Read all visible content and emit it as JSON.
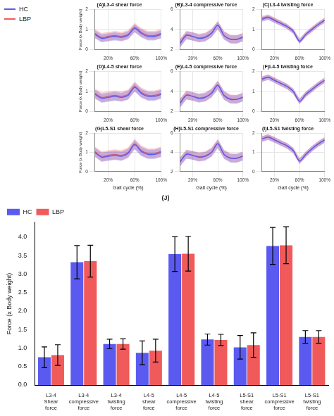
{
  "chart_data": [
    {
      "type": "line",
      "title": "(A)L3-4 shear force",
      "ylabel": "Force (x Body weight)",
      "x": [
        0,
        10,
        20,
        30,
        40,
        50,
        60,
        70,
        80,
        90,
        100
      ],
      "xlim": [
        0,
        100
      ],
      "xticks": [
        {
          "value": 20,
          "label": "20%"
        },
        {
          "value": 60,
          "label": "60%"
        },
        {
          "value": 100,
          "label": "100%"
        }
      ],
      "ylim": [
        0,
        2
      ],
      "yticks": [
        0,
        1,
        2
      ],
      "grid": true,
      "legend": "left",
      "series": [
        {
          "name": "HC",
          "color": "#5a5af0",
          "values": [
            0.75,
            0.55,
            0.6,
            0.65,
            0.6,
            0.7,
            1.05,
            0.8,
            0.65,
            0.65,
            0.75
          ],
          "error": 0.2
        },
        {
          "name": "LBP",
          "color": "#f05a5a",
          "values": [
            0.8,
            0.6,
            0.65,
            0.7,
            0.65,
            0.75,
            1.1,
            0.85,
            0.7,
            0.7,
            0.8
          ],
          "error": 0.22
        }
      ]
    },
    {
      "type": "line",
      "title": "(B)L3-4 compressive force",
      "x": [
        0,
        10,
        20,
        30,
        40,
        50,
        60,
        70,
        80,
        90,
        100
      ],
      "xlim": [
        0,
        100
      ],
      "xticks": [
        {
          "value": 20,
          "label": "20%"
        },
        {
          "value": 60,
          "label": "60%"
        },
        {
          "value": 100,
          "label": "100%"
        }
      ],
      "ylim": [
        2,
        6
      ],
      "yticks": [
        2,
        4,
        6
      ],
      "grid": true,
      "series": [
        {
          "name": "HC",
          "color": "#5a5af0",
          "values": [
            2.6,
            3.4,
            3.3,
            3.1,
            3.2,
            3.6,
            4.4,
            3.4,
            3.0,
            3.0,
            3.2
          ],
          "error": 0.4
        },
        {
          "name": "LBP",
          "color": "#f05a5a",
          "values": [
            2.65,
            3.45,
            3.3,
            3.15,
            3.25,
            3.65,
            4.45,
            3.4,
            3.05,
            3.0,
            3.25
          ],
          "error": 0.42
        }
      ]
    },
    {
      "type": "line",
      "title": "(C)L3-4 twisting force",
      "x": [
        0,
        10,
        20,
        30,
        40,
        50,
        60,
        70,
        80,
        90,
        100
      ],
      "xlim": [
        0,
        100
      ],
      "xticks": [
        {
          "value": 20,
          "label": "20%"
        },
        {
          "value": 60,
          "label": "60%"
        },
        {
          "value": 100,
          "label": "100%"
        }
      ],
      "ylim": [
        0,
        2
      ],
      "yticks": [
        0,
        1,
        2
      ],
      "grid": true,
      "series": [
        {
          "name": "HC",
          "color": "#5a5af0",
          "values": [
            1.5,
            1.6,
            1.45,
            1.3,
            1.15,
            0.9,
            0.4,
            0.75,
            1.0,
            1.25,
            1.45
          ],
          "error": 0.12
        },
        {
          "name": "LBP",
          "color": "#f05a5a",
          "values": [
            1.55,
            1.62,
            1.47,
            1.32,
            1.15,
            0.92,
            0.42,
            0.75,
            1.02,
            1.25,
            1.47
          ],
          "error": 0.13
        }
      ]
    },
    {
      "type": "line",
      "title": "(D)L4-5 shear force",
      "ylabel": "Force (x Body weight)",
      "x": [
        0,
        10,
        20,
        30,
        40,
        50,
        60,
        70,
        80,
        90,
        100
      ],
      "xlim": [
        0,
        100
      ],
      "xticks": [
        {
          "value": 20,
          "label": "20%"
        },
        {
          "value": 60,
          "label": "60%"
        },
        {
          "value": 100,
          "label": "100%"
        }
      ],
      "ylim": [
        0,
        2
      ],
      "yticks": [
        0,
        1,
        2
      ],
      "grid": true,
      "series": [
        {
          "name": "HC",
          "color": "#5a5af0",
          "values": [
            0.85,
            0.65,
            0.7,
            0.75,
            0.7,
            0.8,
            1.2,
            0.9,
            0.75,
            0.75,
            0.85
          ],
          "error": 0.22
        },
        {
          "name": "LBP",
          "color": "#f05a5a",
          "values": [
            0.9,
            0.7,
            0.75,
            0.8,
            0.75,
            0.85,
            1.25,
            0.95,
            0.8,
            0.8,
            0.9
          ],
          "error": 0.24
        }
      ]
    },
    {
      "type": "line",
      "title": "(E)L4-5 compressive force",
      "x": [
        0,
        10,
        20,
        30,
        40,
        50,
        60,
        70,
        80,
        90,
        100
      ],
      "xlim": [
        0,
        100
      ],
      "xticks": [
        {
          "value": 20,
          "label": "20%"
        },
        {
          "value": 60,
          "label": "60%"
        },
        {
          "value": 100,
          "label": "100%"
        }
      ],
      "ylim": [
        2,
        6
      ],
      "yticks": [
        2,
        4,
        6
      ],
      "grid": true,
      "series": [
        {
          "name": "HC",
          "color": "#5a5af0",
          "values": [
            2.8,
            3.6,
            3.5,
            3.3,
            3.4,
            3.8,
            4.6,
            3.6,
            3.2,
            3.2,
            3.4
          ],
          "error": 0.42
        },
        {
          "name": "LBP",
          "color": "#f05a5a",
          "values": [
            2.85,
            3.65,
            3.5,
            3.35,
            3.45,
            3.85,
            4.65,
            3.6,
            3.25,
            3.2,
            3.45
          ],
          "error": 0.44
        }
      ]
    },
    {
      "type": "line",
      "title": "(F)L4-5 twisting force",
      "x": [
        0,
        10,
        20,
        30,
        40,
        50,
        60,
        70,
        80,
        90,
        100
      ],
      "xlim": [
        0,
        100
      ],
      "xticks": [
        {
          "value": 20,
          "label": "20%"
        },
        {
          "value": 60,
          "label": "60%"
        },
        {
          "value": 100,
          "label": "100%"
        }
      ],
      "ylim": [
        0,
        2
      ],
      "yticks": [
        0,
        1,
        2
      ],
      "grid": true,
      "series": [
        {
          "name": "HC",
          "color": "#5a5af0",
          "values": [
            1.6,
            1.7,
            1.55,
            1.4,
            1.25,
            1.0,
            0.5,
            0.85,
            1.1,
            1.35,
            1.55
          ],
          "error": 0.13
        },
        {
          "name": "LBP",
          "color": "#f05a5a",
          "values": [
            1.62,
            1.72,
            1.57,
            1.4,
            1.25,
            1.0,
            0.5,
            0.85,
            1.1,
            1.35,
            1.55
          ],
          "error": 0.14
        }
      ]
    },
    {
      "type": "line",
      "title": "(G)L5-S1 shear force",
      "ylabel": "Force (x Body weight)",
      "xlabel": "Gait cycle (%)",
      "x": [
        0,
        10,
        20,
        30,
        40,
        50,
        60,
        70,
        80,
        90,
        100
      ],
      "xlim": [
        0,
        100
      ],
      "xticks": [
        {
          "value": 20,
          "label": "20%"
        },
        {
          "value": 60,
          "label": "60%"
        },
        {
          "value": 100,
          "label": "100%"
        }
      ],
      "ylim": [
        0,
        2
      ],
      "yticks": [
        0,
        1,
        2
      ],
      "grid": true,
      "series": [
        {
          "name": "HC",
          "color": "#5a5af0",
          "values": [
            1.0,
            0.75,
            0.8,
            0.85,
            0.8,
            0.95,
            1.4,
            1.05,
            0.9,
            0.9,
            1.0
          ],
          "error": 0.24
        },
        {
          "name": "LBP",
          "color": "#f05a5a",
          "values": [
            1.05,
            0.8,
            0.85,
            0.9,
            0.85,
            1.0,
            1.45,
            1.1,
            0.95,
            0.95,
            1.05
          ],
          "error": 0.26
        }
      ]
    },
    {
      "type": "line",
      "title": "(H)L5-S1 compressive force",
      "xlabel": "Gait cycle (%)",
      "x": [
        0,
        10,
        20,
        30,
        40,
        50,
        60,
        70,
        80,
        90,
        100
      ],
      "xlim": [
        0,
        100
      ],
      "xticks": [
        {
          "value": 20,
          "label": "20%"
        },
        {
          "value": 60,
          "label": "60%"
        },
        {
          "value": 100,
          "label": "100%"
        }
      ],
      "ylim": [
        2,
        6
      ],
      "yticks": [
        2,
        4,
        6
      ],
      "grid": true,
      "series": [
        {
          "name": "HC",
          "color": "#5a5af0",
          "values": [
            3.0,
            3.8,
            3.7,
            3.5,
            3.6,
            4.0,
            4.9,
            3.8,
            3.4,
            3.4,
            3.6
          ],
          "error": 0.45
        },
        {
          "name": "LBP",
          "color": "#f05a5a",
          "values": [
            3.05,
            3.85,
            3.7,
            3.55,
            3.65,
            4.05,
            4.95,
            3.8,
            3.45,
            3.4,
            3.65
          ],
          "error": 0.46
        }
      ]
    },
    {
      "type": "line",
      "title": "(I)L5-S1 twisting force",
      "xlabel": "Gait cycle (%)",
      "x": [
        0,
        10,
        20,
        30,
        40,
        50,
        60,
        70,
        80,
        90,
        100
      ],
      "xlim": [
        0,
        100
      ],
      "xticks": [
        {
          "value": 20,
          "label": "20%"
        },
        {
          "value": 60,
          "label": "60%"
        },
        {
          "value": 100,
          "label": "100%"
        }
      ],
      "ylim": [
        0,
        2
      ],
      "yticks": [
        0,
        1,
        2
      ],
      "grid": true,
      "series": [
        {
          "name": "HC",
          "color": "#5a5af0",
          "values": [
            1.7,
            1.8,
            1.65,
            1.5,
            1.35,
            1.1,
            0.55,
            0.9,
            1.2,
            1.45,
            1.65
          ],
          "error": 0.14
        },
        {
          "name": "LBP",
          "color": "#f05a5a",
          "values": [
            1.7,
            1.82,
            1.67,
            1.5,
            1.35,
            1.1,
            0.55,
            0.9,
            1.2,
            1.45,
            1.65
          ],
          "error": 0.15
        }
      ]
    },
    {
      "type": "bar",
      "title": "(J)",
      "ylabel": "Force (x Body weight)",
      "categories": [
        "L3-4 Shear force",
        "L3-4 compressive force",
        "L3-4 twisting force",
        "L4-5 shear force",
        "L4-5 compressive force",
        "L4-5 twisting force",
        "L5-S1 shear force",
        "L5-S1 compressive force",
        "L5-S1 twisting force"
      ],
      "ylim": [
        0,
        4.4
      ],
      "yticks": [
        {
          "value": 0,
          "label": "0.0"
        },
        {
          "value": 0.5,
          "label": "0.5"
        },
        {
          "value": 1,
          "label": "1.0"
        },
        {
          "value": 1.5,
          "label": "1.5"
        },
        {
          "value": 2,
          "label": "2.0"
        },
        {
          "value": 2.5,
          "label": "2.5"
        },
        {
          "value": 3,
          "label": "3.0"
        },
        {
          "value": 3.5,
          "label": "3.5"
        },
        {
          "value": 4,
          "label": "4.0"
        }
      ],
      "grid": false,
      "legend": "upper left",
      "series": [
        {
          "name": "HC",
          "color": "#5a5af0",
          "values": [
            0.75,
            3.32,
            1.11,
            0.87,
            3.54,
            1.23,
            1.02,
            3.76,
            1.3
          ],
          "error": [
            0.28,
            0.45,
            0.13,
            0.32,
            0.47,
            0.15,
            0.32,
            0.5,
            0.17
          ]
        },
        {
          "name": "LBP",
          "color": "#f05a5a",
          "values": [
            0.81,
            3.35,
            1.11,
            0.93,
            3.55,
            1.22,
            1.08,
            3.78,
            1.3
          ],
          "error": [
            0.28,
            0.43,
            0.14,
            0.31,
            0.47,
            0.15,
            0.33,
            0.5,
            0.17
          ]
        }
      ]
    }
  ]
}
